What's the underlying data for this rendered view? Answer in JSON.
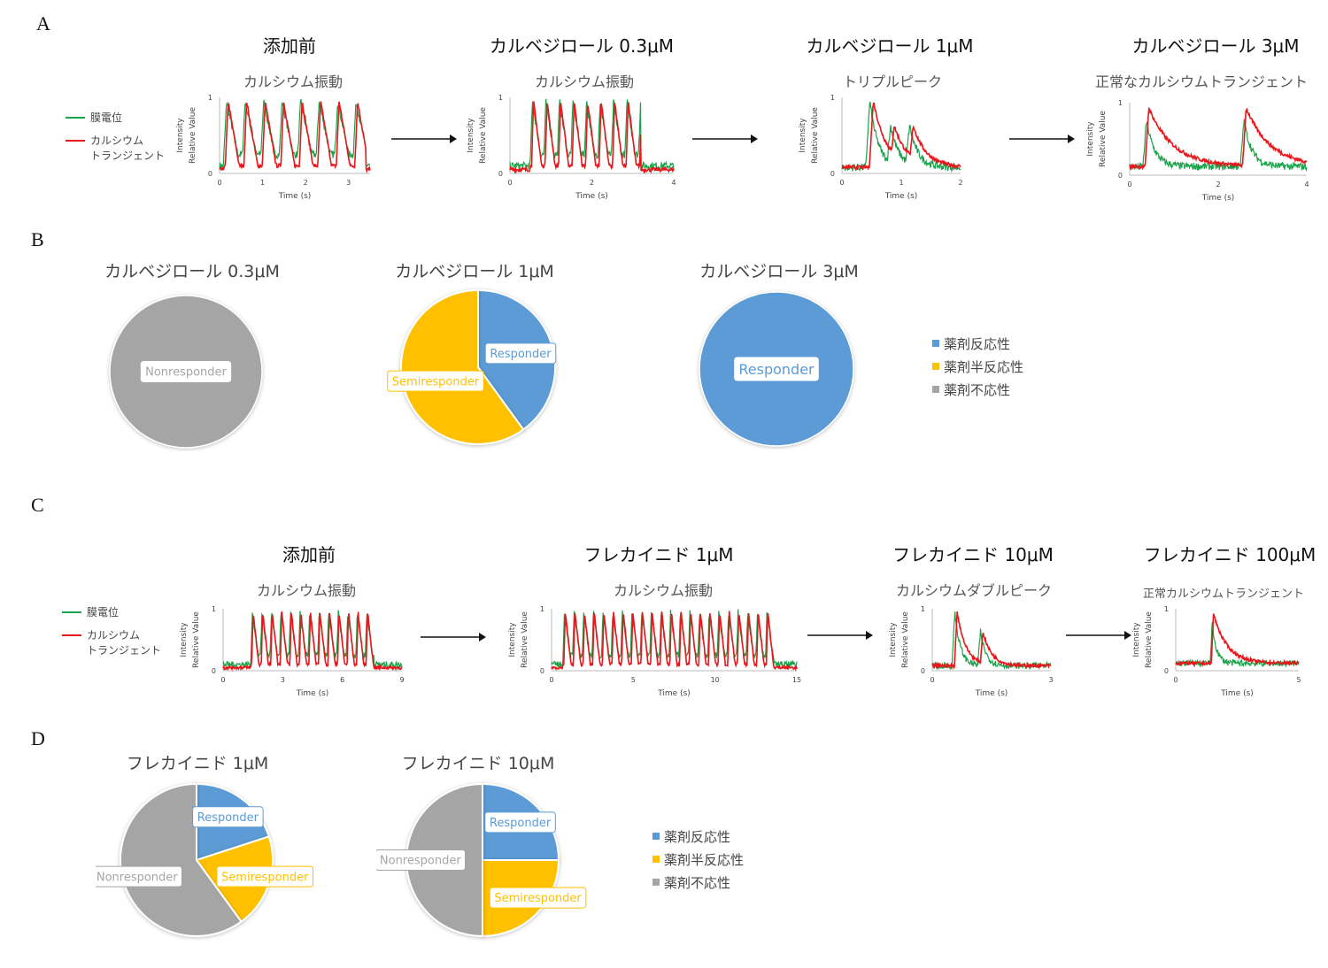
{
  "colors": {
    "green": "#1aa34a",
    "red": "#e8171b",
    "responder": "#5b9bd5",
    "semiresponder": "#ffc000",
    "nonresponder": "#a5a5a5"
  },
  "panels": {
    "A": "A",
    "B": "B",
    "C": "C",
    "D": "D"
  },
  "trace_legend": {
    "membrane": "膜電位",
    "calcium_1": "カルシウム",
    "calcium_2": "トランジェント"
  },
  "axis_text": {
    "ylabel_1": "Intensity",
    "ylabel_2": "Relative Value",
    "xlabel": "Time (s)",
    "ymax": "1",
    "ymin": "0"
  },
  "pie_legend": {
    "responder": "薬剤反応性",
    "semiresponder": "薬剤半反応性",
    "nonresponder": "薬剤不応性"
  },
  "section_a": {
    "titles": [
      "添加前",
      "カルベジロール 0.3μM",
      "カルベジロール 1μM",
      "カルベジロール 3μM"
    ],
    "subtitles": [
      "カルシウム振動",
      "カルシウム振動",
      "トリプルピーク",
      "正常なカルシウムトランジェント"
    ]
  },
  "section_b": {
    "titles": [
      "カルベジロール 0.3μM",
      "カルベジロール 1μM",
      "カルベジロール 3μM"
    ]
  },
  "section_c": {
    "titles": [
      "添加前",
      "フレカイニド 1μM",
      "フレカイニド 10μM",
      "フレカイニド 100μM"
    ],
    "subtitles": [
      "カルシウム振動",
      "カルシウム振動",
      "カルシウムダブルピーク",
      "正常カルシウムトランジェント"
    ]
  },
  "section_d": {
    "titles": [
      "フレカイニド 1μM",
      "フレカイニド 10μM"
    ]
  },
  "chart_data": [
    {
      "id": "A1",
      "type": "line",
      "xlim": [
        0,
        3.5
      ],
      "ylim": [
        0,
        1
      ],
      "xticks": [
        "0",
        "1",
        "2",
        "3"
      ],
      "xtick_values": [
        0,
        1,
        2,
        3
      ],
      "pattern": "oscillation",
      "start": 0.1,
      "end": 3.4,
      "period": 0.43,
      "series": [
        {
          "color": "green"
        },
        {
          "color": "red"
        }
      ]
    },
    {
      "id": "A2",
      "type": "line",
      "xlim": [
        0,
        4
      ],
      "ylim": [
        0,
        1
      ],
      "xticks": [
        "0",
        "2",
        "4"
      ],
      "xtick_values": [
        0,
        2,
        4
      ],
      "pattern": "oscillation",
      "start": 0.5,
      "end": 3.2,
      "period": 0.33,
      "series": [
        {
          "color": "green"
        },
        {
          "color": "red"
        }
      ]
    },
    {
      "id": "A3",
      "type": "line",
      "xlim": [
        0,
        2
      ],
      "ylim": [
        0,
        1
      ],
      "xticks": [
        "0",
        "1",
        "2"
      ],
      "xtick_values": [
        0,
        1,
        2
      ],
      "pattern": "triple",
      "peaks": [
        0.45,
        0.8,
        1.12
      ],
      "series": [
        {
          "color": "green"
        },
        {
          "color": "red"
        }
      ]
    },
    {
      "id": "A4",
      "type": "line",
      "xlim": [
        0,
        4
      ],
      "ylim": [
        0,
        1
      ],
      "xticks": [
        "0",
        "2",
        "4"
      ],
      "xtick_values": [
        0,
        2,
        4
      ],
      "pattern": "transient",
      "peaks": [
        0.35,
        2.55
      ],
      "series": [
        {
          "color": "green"
        },
        {
          "color": "red"
        }
      ]
    },
    {
      "id": "C1",
      "type": "line",
      "xlim": [
        0,
        9
      ],
      "ylim": [
        0,
        1
      ],
      "xticks": [
        "0",
        "3",
        "6",
        "9"
      ],
      "xtick_values": [
        0,
        3,
        6,
        9
      ],
      "pattern": "oscillation",
      "start": 1.4,
      "end": 7.6,
      "period": 0.48,
      "series": [
        {
          "color": "green"
        },
        {
          "color": "red"
        }
      ]
    },
    {
      "id": "C2",
      "type": "line",
      "xlim": [
        0,
        15
      ],
      "ylim": [
        0,
        1
      ],
      "xticks": [
        "0",
        "5",
        "10",
        "15"
      ],
      "xtick_values": [
        0,
        5,
        10,
        15
      ],
      "pattern": "oscillation",
      "start": 0.7,
      "end": 13.6,
      "period": 0.59,
      "series": [
        {
          "color": "green"
        },
        {
          "color": "red"
        }
      ]
    },
    {
      "id": "C3",
      "type": "line",
      "xlim": [
        0,
        3
      ],
      "ylim": [
        0,
        1
      ],
      "xticks": [
        "0",
        "3"
      ],
      "xtick_values": [
        0,
        3
      ],
      "pattern": "double",
      "peaks": [
        0.55,
        1.2
      ],
      "series": [
        {
          "color": "green"
        },
        {
          "color": "red"
        }
      ]
    },
    {
      "id": "C4",
      "type": "line",
      "xlim": [
        0,
        5
      ],
      "ylim": [
        0,
        1
      ],
      "xticks": [
        "0",
        "5"
      ],
      "xtick_values": [
        0,
        5
      ],
      "pattern": "transient",
      "peaks": [
        1.45
      ],
      "series": [
        {
          "color": "green"
        },
        {
          "color": "red"
        }
      ]
    },
    {
      "id": "B1",
      "type": "pie",
      "slices": [
        {
          "label": "Nonresponder",
          "value": 100,
          "color": "nonresponder"
        }
      ]
    },
    {
      "id": "B2",
      "type": "pie",
      "slices": [
        {
          "label": "Responder",
          "value": 40,
          "color": "responder"
        },
        {
          "label": "Semiresponder",
          "value": 60,
          "color": "semiresponder"
        }
      ]
    },
    {
      "id": "B3",
      "type": "pie",
      "slices": [
        {
          "label": "Responder",
          "value": 100,
          "color": "responder"
        }
      ]
    },
    {
      "id": "D1",
      "type": "pie",
      "slices": [
        {
          "label": "Responder",
          "value": 20,
          "color": "responder"
        },
        {
          "label": "Semiresponder",
          "value": 20,
          "color": "semiresponder"
        },
        {
          "label": "Nonresponder",
          "value": 60,
          "color": "nonresponder"
        }
      ]
    },
    {
      "id": "D2",
      "type": "pie",
      "slices": [
        {
          "label": "Responder",
          "value": 25,
          "color": "responder"
        },
        {
          "label": "Semiresponder",
          "value": 25,
          "color": "semiresponder"
        },
        {
          "label": "Nonresponder",
          "value": 50,
          "color": "nonresponder"
        }
      ]
    }
  ]
}
